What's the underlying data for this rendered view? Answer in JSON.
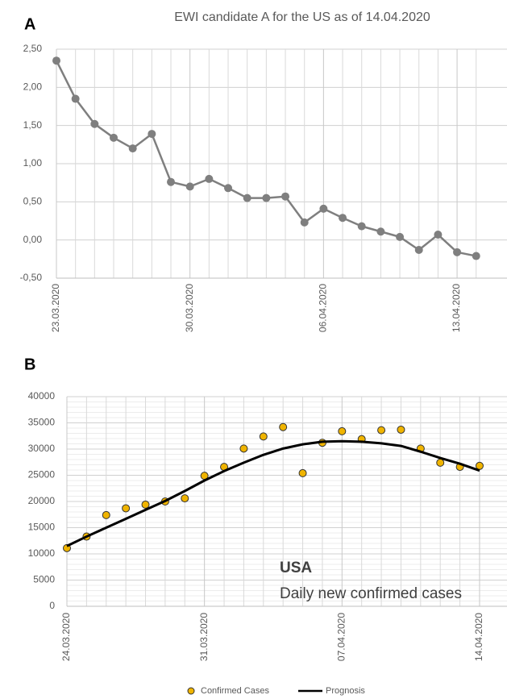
{
  "chart_data": [
    {
      "type": "line",
      "panel": "A",
      "title": "EWI candidate A for the US as of 14.04.2020",
      "categories": [
        "23.03.2020",
        null,
        null,
        null,
        null,
        null,
        null,
        "30.03.2020",
        null,
        null,
        null,
        null,
        null,
        null,
        "06.04.2020",
        null,
        null,
        null,
        null,
        null,
        null,
        "13.04.2020",
        null
      ],
      "series": [
        {
          "color": "#7f7f7f",
          "values": [
            2.35,
            1.85,
            1.52,
            1.34,
            1.2,
            1.39,
            0.76,
            0.7,
            0.8,
            0.68,
            0.55,
            0.55,
            0.57,
            0.23,
            0.41,
            0.29,
            0.18,
            0.11,
            0.04,
            -0.13,
            0.07,
            -0.16,
            -0.21
          ]
        }
      ],
      "ylim": [
        -0.5,
        2.5
      ],
      "yticks": [
        {
          "value": -0.5,
          "label": "-0,50"
        },
        {
          "value": 0,
          "label": "0,00"
        },
        {
          "value": 0.5,
          "label": "0,50"
        },
        {
          "value": 1,
          "label": "1,00"
        },
        {
          "value": 1.5,
          "label": "1,50"
        },
        {
          "value": 2,
          "label": "2,00"
        },
        {
          "value": 2.5,
          "label": "2,50"
        }
      ],
      "grid": true
    },
    {
      "type": "combo",
      "panel": "B",
      "categories": [
        "24.03.2020",
        null,
        null,
        null,
        null,
        null,
        null,
        "31.03.2020",
        null,
        null,
        null,
        null,
        null,
        null,
        "07.04.2020",
        null,
        null,
        null,
        null,
        null,
        null,
        "14.04.2020"
      ],
      "series": [
        {
          "name": "Confirmed Cases",
          "type": "scatter",
          "color": "#f0b400",
          "values": [
            11100,
            13300,
            17400,
            18700,
            19400,
            20000,
            20600,
            24900,
            26600,
            30100,
            32400,
            34200,
            25400,
            31200,
            33400,
            31900,
            33600,
            33700,
            30100,
            27400,
            26600,
            26800
          ]
        },
        {
          "name": "Prognosis",
          "type": "line",
          "color": "#000000",
          "values": [
            11500,
            13300,
            15000,
            16700,
            18400,
            20100,
            22000,
            24000,
            25800,
            27400,
            28900,
            30100,
            30900,
            31400,
            31500,
            31400,
            31100,
            30600,
            29500,
            28300,
            27200,
            25900
          ]
        }
      ],
      "ylim": [
        0,
        40000
      ],
      "yticks": [
        0,
        5000,
        10000,
        15000,
        20000,
        25000,
        30000,
        35000,
        40000
      ],
      "annotations": [
        "USA",
        "Daily new confirmed cases"
      ],
      "grid": true
    }
  ]
}
